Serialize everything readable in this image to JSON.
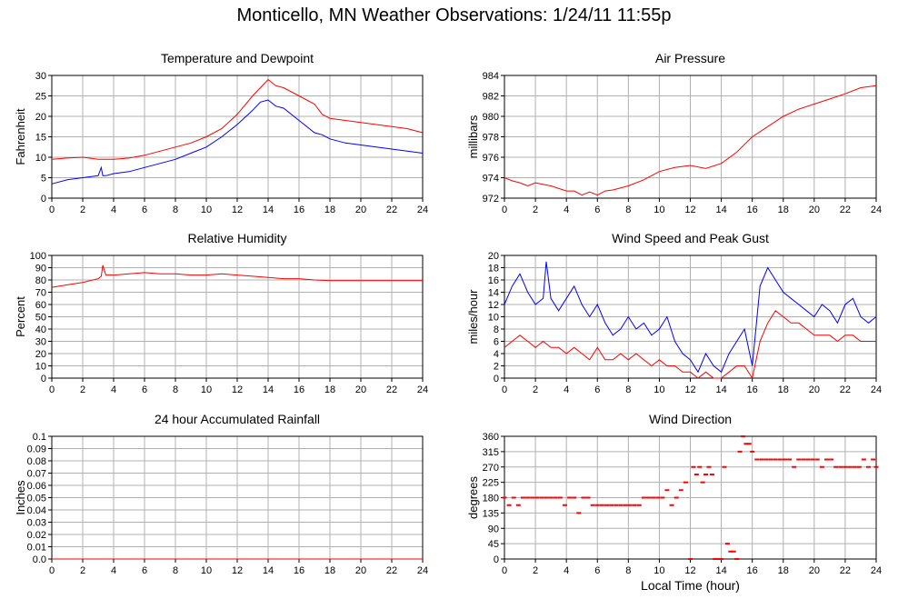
{
  "page": {
    "title": "Monticello, MN Weather Observations: 1/24/11 11:55p"
  },
  "colors": {
    "series_red": "#ff0000",
    "series_blue": "#0000ff",
    "grid": "#b0b0b0",
    "frame": "#000000"
  },
  "chart_data": [
    {
      "id": "temp",
      "type": "line",
      "title": "Temperature and Dewpoint",
      "xlabel": "",
      "ylabel": "Fahrenheit",
      "xlim": [
        0,
        24
      ],
      "ylim": [
        0,
        30
      ],
      "xticks": [
        0,
        2,
        4,
        6,
        8,
        10,
        12,
        14,
        16,
        18,
        20,
        22,
        24
      ],
      "yticks": [
        0,
        5,
        10,
        15,
        20,
        25,
        30
      ],
      "grid": true,
      "series": [
        {
          "color": "#ff0000",
          "x": [
            0,
            1,
            2,
            3,
            4,
            5,
            6,
            7,
            8,
            9,
            10,
            11,
            12,
            13,
            13.5,
            14,
            14.5,
            15,
            16,
            17,
            17.5,
            18,
            19,
            20,
            21,
            22,
            23,
            24
          ],
          "y": [
            9.5,
            9.8,
            10,
            9.5,
            9.5,
            9.8,
            10.5,
            11.5,
            12.5,
            13.5,
            15,
            17,
            20.5,
            25,
            27,
            29,
            27.5,
            27,
            25,
            23,
            20.5,
            19.5,
            19,
            18.5,
            18,
            17.5,
            17,
            16
          ]
        },
        {
          "color": "#0000ff",
          "x": [
            0,
            1,
            2,
            3,
            3.2,
            3.3,
            3.5,
            4,
            5,
            6,
            7,
            8,
            9,
            10,
            11,
            12,
            13,
            13.5,
            14,
            14.5,
            15,
            16,
            17,
            17.5,
            18,
            19,
            20,
            21,
            22,
            23,
            24
          ],
          "y": [
            3.5,
            4.5,
            5,
            5.5,
            7.5,
            5.5,
            5.5,
            6,
            6.5,
            7.5,
            8.5,
            9.5,
            11,
            12.5,
            15,
            18,
            21.5,
            23.5,
            24,
            22.5,
            22,
            19,
            16,
            15.5,
            14.5,
            13.5,
            13,
            12.5,
            12,
            11.5,
            11
          ]
        }
      ]
    },
    {
      "id": "pressure",
      "type": "line",
      "title": "Air Pressure",
      "xlabel": "",
      "ylabel": "millibars",
      "xlim": [
        0,
        24
      ],
      "ylim": [
        972,
        984
      ],
      "xticks": [
        0,
        2,
        4,
        6,
        8,
        10,
        12,
        14,
        16,
        18,
        20,
        22,
        24
      ],
      "yticks": [
        972,
        974,
        976,
        978,
        980,
        982,
        984
      ],
      "grid": true,
      "series": [
        {
          "color": "#ff0000",
          "x": [
            0,
            0.5,
            1,
            1.5,
            2,
            3,
            4,
            4.5,
            5,
            5.5,
            6,
            6.5,
            7,
            8,
            9,
            10,
            11,
            12,
            13,
            14,
            15,
            16,
            17,
            18,
            19,
            20,
            21,
            22,
            23,
            24
          ],
          "y": [
            974,
            973.7,
            973.5,
            973.2,
            973.5,
            973.2,
            972.7,
            972.7,
            972.3,
            972.6,
            972.3,
            972.7,
            972.8,
            973.2,
            973.8,
            974.6,
            975,
            975.2,
            974.9,
            975.4,
            976.5,
            978,
            979,
            980,
            980.7,
            981.2,
            981.7,
            982.2,
            982.8,
            983
          ]
        }
      ]
    },
    {
      "id": "humidity",
      "type": "line",
      "title": "Relative Humidity",
      "xlabel": "",
      "ylabel": "Percent",
      "xlim": [
        0,
        24
      ],
      "ylim": [
        0,
        100
      ],
      "xticks": [
        0,
        2,
        4,
        6,
        8,
        10,
        12,
        14,
        16,
        18,
        20,
        22,
        24
      ],
      "yticks": [
        0,
        10,
        20,
        30,
        40,
        50,
        60,
        70,
        80,
        90,
        100
      ],
      "grid": true,
      "series": [
        {
          "color": "#ff0000",
          "x": [
            0,
            1,
            2,
            3,
            3.2,
            3.3,
            3.5,
            4,
            5,
            6,
            7,
            8,
            9,
            10,
            11,
            12,
            13,
            14,
            15,
            16,
            17,
            18,
            19,
            20,
            21,
            22,
            23,
            24
          ],
          "y": [
            74,
            76,
            78,
            81,
            83,
            92,
            84,
            84,
            85,
            86,
            85,
            85,
            84,
            84,
            85,
            84,
            83,
            82,
            81,
            81,
            80,
            79.5,
            79.5,
            79.5,
            79.5,
            79.5,
            79.5,
            79.5
          ]
        }
      ]
    },
    {
      "id": "wind",
      "type": "line",
      "title": "Wind Speed and Peak Gust",
      "xlabel": "",
      "ylabel": "miles/hour",
      "xlim": [
        0,
        24
      ],
      "ylim": [
        0,
        20
      ],
      "xticks": [
        0,
        2,
        4,
        6,
        8,
        10,
        12,
        14,
        16,
        18,
        20,
        22,
        24
      ],
      "yticks": [
        0,
        2,
        4,
        6,
        8,
        10,
        12,
        14,
        16,
        18,
        20
      ],
      "grid": true,
      "series": [
        {
          "color": "#0000ff",
          "x": [
            0,
            0.5,
            1,
            1.5,
            2,
            2.5,
            2.7,
            3,
            3.5,
            4,
            4.5,
            5,
            5.5,
            6,
            6.5,
            7,
            7.5,
            8,
            8.5,
            9,
            9.5,
            10,
            10.5,
            11,
            11.5,
            12,
            12.5,
            13,
            13.5,
            14,
            14.5,
            15,
            15.5,
            16,
            16.5,
            17,
            17.5,
            18,
            18.5,
            19,
            19.5,
            20,
            20.5,
            21,
            21.5,
            22,
            22.5,
            23,
            23.5,
            24
          ],
          "y": [
            12,
            15,
            17,
            14,
            12,
            13,
            19,
            13,
            11,
            13,
            15,
            12,
            10,
            12,
            9,
            7,
            8,
            10,
            8,
            9,
            7,
            8,
            10,
            6,
            4,
            3,
            1,
            4,
            2,
            1,
            4,
            6,
            8,
            2,
            15,
            18,
            16,
            14,
            13,
            12,
            11,
            10,
            12,
            11,
            9,
            12,
            13,
            10,
            9,
            10
          ]
        },
        {
          "color": "#ff0000",
          "x": [
            0,
            0.5,
            1,
            1.5,
            2,
            2.5,
            3,
            3.5,
            4,
            4.5,
            5,
            5.5,
            6,
            6.5,
            7,
            7.5,
            8,
            8.5,
            9,
            9.5,
            10,
            10.5,
            11,
            11.5,
            12,
            12.5,
            13,
            13.5,
            14,
            14.5,
            15,
            15.5,
            16,
            16.5,
            17,
            17.5,
            18,
            18.5,
            19,
            19.5,
            20,
            20.5,
            21,
            21.5,
            22,
            22.5,
            23,
            23.5,
            24
          ],
          "y": [
            5,
            6,
            7,
            6,
            5,
            6,
            5,
            5,
            4,
            5,
            4,
            3,
            5,
            3,
            3,
            4,
            3,
            4,
            3,
            2,
            3,
            2,
            2,
            1,
            1,
            0,
            1,
            0,
            0,
            1,
            2,
            2,
            0,
            6,
            9,
            11,
            10,
            9,
            9,
            8,
            7,
            7,
            7,
            6,
            7,
            7,
            6,
            6,
            6
          ]
        }
      ]
    },
    {
      "id": "rain",
      "type": "line",
      "title": "24 hour Accumulated Rainfall",
      "xlabel": "",
      "ylabel": "Inches",
      "xlim": [
        0,
        24
      ],
      "ylim": [
        0,
        0.1
      ],
      "xticks": [
        0,
        2,
        4,
        6,
        8,
        10,
        12,
        14,
        16,
        18,
        20,
        22,
        24
      ],
      "yticks": [
        0.0,
        0.01,
        0.02,
        0.03,
        0.04,
        0.05,
        0.06,
        0.07,
        0.08,
        0.09,
        0.1
      ],
      "ytick_labels": [
        "0.0",
        "0.01",
        "0.02",
        "0.03",
        "0.04",
        "0.05",
        "0.06",
        "0.07",
        "0.08",
        "0.09",
        "0.1"
      ],
      "grid": true,
      "series": [
        {
          "color": "#ff0000",
          "x": [
            0,
            24
          ],
          "y": [
            0,
            0
          ]
        }
      ]
    },
    {
      "id": "direction",
      "type": "scatter",
      "title": "Wind Direction",
      "xlabel": "Local Time (hour)",
      "ylabel": "degrees",
      "xlim": [
        0,
        24
      ],
      "ylim": [
        0,
        360
      ],
      "xticks": [
        0,
        2,
        4,
        6,
        8,
        10,
        12,
        14,
        16,
        18,
        20,
        22,
        24
      ],
      "yticks": [
        0,
        45,
        90,
        135,
        180,
        225,
        270,
        315,
        360
      ],
      "grid": true,
      "series": [
        {
          "color": "#ff0000",
          "x": [
            0,
            0.3,
            0.6,
            0.9,
            1.2,
            1.5,
            1.8,
            2.1,
            2.4,
            2.7,
            3,
            3.3,
            3.6,
            3.9,
            4.2,
            4.5,
            4.8,
            5.1,
            5.4,
            5.7,
            6,
            6.3,
            6.6,
            6.9,
            7.2,
            7.5,
            7.8,
            8.1,
            8.4,
            8.7,
            9,
            9.3,
            9.6,
            9.9,
            10.2,
            10.5,
            10.8,
            11.1,
            11.4,
            11.7,
            12,
            12.2,
            12.4,
            12.6,
            12.8,
            13,
            13.2,
            13.4,
            13.6,
            13.8,
            14,
            14.2,
            14.4,
            14.6,
            14.8,
            15,
            15.2,
            15.4,
            15.6,
            15.8,
            16,
            16.3,
            16.6,
            16.9,
            17.2,
            17.5,
            17.8,
            18.1,
            18.4,
            18.7,
            19,
            19.3,
            19.6,
            19.9,
            20.2,
            20.5,
            20.8,
            21.1,
            21.4,
            21.7,
            22,
            22.3,
            22.6,
            22.9,
            23.2,
            23.5,
            23.8,
            24
          ],
          "y": [
            180,
            158,
            180,
            158,
            180,
            180,
            180,
            180,
            180,
            180,
            180,
            180,
            180,
            158,
            180,
            180,
            135,
            180,
            180,
            158,
            158,
            158,
            158,
            158,
            158,
            158,
            158,
            158,
            158,
            158,
            180,
            180,
            180,
            180,
            180,
            202,
            158,
            180,
            202,
            225,
            0,
            270,
            248,
            270,
            225,
            248,
            270,
            248,
            0,
            0,
            0,
            270,
            45,
            22,
            22,
            0,
            315,
            360,
            338,
            338,
            315,
            292,
            292,
            292,
            292,
            292,
            292,
            292,
            292,
            270,
            292,
            292,
            292,
            292,
            292,
            270,
            292,
            292,
            270,
            270,
            270,
            270,
            270,
            270,
            292,
            270,
            292,
            270
          ]
        }
      ]
    }
  ]
}
